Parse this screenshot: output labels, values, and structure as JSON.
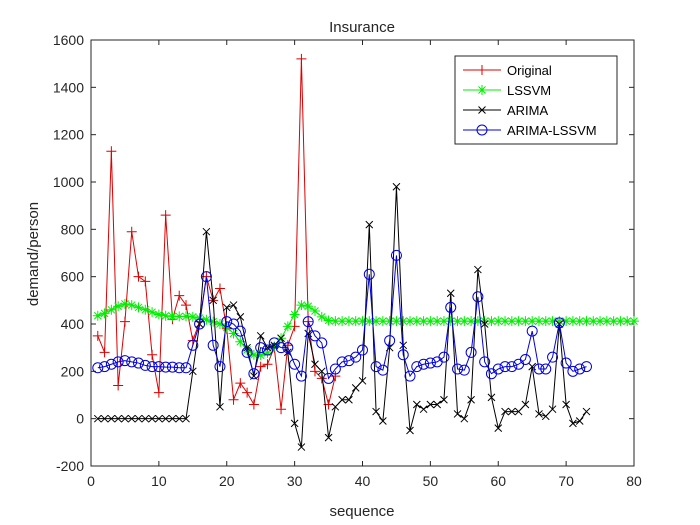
{
  "chart_data": {
    "type": "line",
    "title": "Insurance",
    "xlabel": "sequence",
    "ylabel": "demand/person",
    "xlim": [
      0,
      80
    ],
    "ylim": [
      -200,
      1600
    ],
    "xticks": [
      0,
      10,
      20,
      30,
      40,
      50,
      60,
      70,
      80
    ],
    "yticks": [
      -200,
      0,
      200,
      400,
      600,
      800,
      1000,
      1200,
      1400,
      1600
    ],
    "grid": false,
    "legend_position": "top-right",
    "series": [
      {
        "name": "Original",
        "color": "#dd0000",
        "marker": "plus",
        "x": [
          1,
          2,
          3,
          4,
          5,
          6,
          7,
          8,
          9,
          10,
          11,
          12,
          13,
          14,
          15,
          16,
          17,
          18,
          19,
          20,
          21,
          22,
          23,
          24,
          25,
          26,
          27,
          28,
          29,
          30,
          31,
          32,
          33,
          34,
          35,
          36
        ],
        "values": [
          350,
          280,
          1130,
          140,
          410,
          790,
          600,
          580,
          270,
          110,
          860,
          420,
          520,
          480,
          330,
          410,
          600,
          500,
          550,
          380,
          80,
          150,
          110,
          60,
          220,
          230,
          300,
          40,
          310,
          390,
          1520,
          410,
          200,
          170,
          60,
          180
        ]
      },
      {
        "name": "LSSVM",
        "color": "#00ee00",
        "marker": "asterisk",
        "x": [
          1,
          2,
          3,
          4,
          5,
          6,
          7,
          8,
          9,
          10,
          11,
          12,
          13,
          14,
          15,
          16,
          17,
          18,
          19,
          20,
          21,
          22,
          23,
          24,
          25,
          26,
          27,
          28,
          29,
          30,
          31,
          32,
          33,
          34,
          35,
          36,
          37,
          38,
          39,
          40,
          41,
          42,
          43,
          44,
          45,
          46,
          47,
          48,
          49,
          50,
          51,
          52,
          53,
          54,
          55,
          56,
          57,
          58,
          59,
          60,
          61,
          62,
          63,
          64,
          65,
          66,
          67,
          68,
          69,
          70,
          71,
          72,
          73,
          74,
          75,
          76,
          77,
          78,
          79,
          80
        ],
        "values": [
          435,
          445,
          460,
          475,
          485,
          480,
          470,
          460,
          450,
          440,
          435,
          432,
          432,
          432,
          430,
          425,
          418,
          410,
          400,
          385,
          360,
          325,
          290,
          270,
          268,
          278,
          305,
          340,
          390,
          440,
          480,
          475,
          455,
          430,
          415,
          412,
          412,
          412,
          412,
          412,
          412,
          412,
          412,
          412,
          412,
          412,
          412,
          412,
          412,
          412,
          412,
          412,
          412,
          412,
          412,
          412,
          412,
          412,
          412,
          412,
          412,
          412,
          412,
          412,
          412,
          412,
          412,
          412,
          412,
          412,
          412,
          412,
          412,
          412,
          412,
          412,
          412,
          412,
          412,
          412
        ]
      },
      {
        "name": "ARIMA",
        "color": "#000000",
        "marker": "x",
        "x": [
          1,
          2,
          3,
          4,
          5,
          6,
          7,
          8,
          9,
          10,
          11,
          12,
          13,
          14,
          15,
          16,
          17,
          18,
          19,
          20,
          21,
          22,
          23,
          24,
          25,
          26,
          27,
          28,
          29,
          30,
          31,
          32,
          33,
          34,
          35,
          36,
          37,
          38,
          39,
          40,
          41,
          42,
          43,
          44,
          45,
          46,
          47,
          48,
          49,
          50,
          51,
          52,
          53,
          54,
          55,
          56,
          57,
          58,
          59,
          60,
          61,
          62,
          63,
          64,
          65,
          66,
          67,
          68,
          69,
          70,
          71,
          72,
          73
        ],
        "values": [
          0,
          0,
          0,
          0,
          0,
          0,
          0,
          0,
          0,
          0,
          0,
          0,
          0,
          0,
          200,
          400,
          790,
          500,
          50,
          470,
          480,
          430,
          300,
          180,
          350,
          300,
          310,
          340,
          280,
          -20,
          -120,
          360,
          230,
          200,
          -80,
          50,
          80,
          80,
          130,
          160,
          820,
          30,
          -10,
          300,
          980,
          310,
          -50,
          60,
          40,
          60,
          60,
          80,
          530,
          20,
          0,
          80,
          630,
          400,
          90,
          -40,
          30,
          30,
          30,
          60,
          220,
          20,
          10,
          40,
          400,
          60,
          -20,
          -10,
          30
        ]
      },
      {
        "name": "ARIMA-LSSVM",
        "color": "#0000dd",
        "marker": "circle",
        "x": [
          1,
          2,
          3,
          4,
          5,
          6,
          7,
          8,
          9,
          10,
          11,
          12,
          13,
          14,
          15,
          16,
          17,
          18,
          19,
          20,
          21,
          22,
          23,
          24,
          25,
          26,
          27,
          28,
          29,
          30,
          31,
          32,
          33,
          34,
          35,
          36,
          37,
          38,
          39,
          40,
          41,
          42,
          43,
          44,
          45,
          46,
          47,
          48,
          49,
          50,
          51,
          52,
          53,
          54,
          55,
          56,
          57,
          58,
          59,
          60,
          61,
          62,
          63,
          64,
          65,
          66,
          67,
          68,
          69,
          70,
          71,
          72,
          73
        ],
        "values": [
          215,
          220,
          230,
          240,
          245,
          240,
          235,
          225,
          220,
          220,
          218,
          218,
          215,
          215,
          310,
          400,
          600,
          310,
          220,
          410,
          400,
          370,
          280,
          190,
          300,
          290,
          320,
          300,
          300,
          230,
          180,
          410,
          350,
          320,
          170,
          210,
          240,
          245,
          260,
          290,
          610,
          220,
          205,
          330,
          690,
          270,
          180,
          220,
          230,
          235,
          240,
          260,
          470,
          210,
          205,
          280,
          515,
          240,
          190,
          210,
          220,
          220,
          230,
          250,
          370,
          210,
          210,
          260,
          405,
          235,
          200,
          210,
          220
        ]
      }
    ]
  }
}
